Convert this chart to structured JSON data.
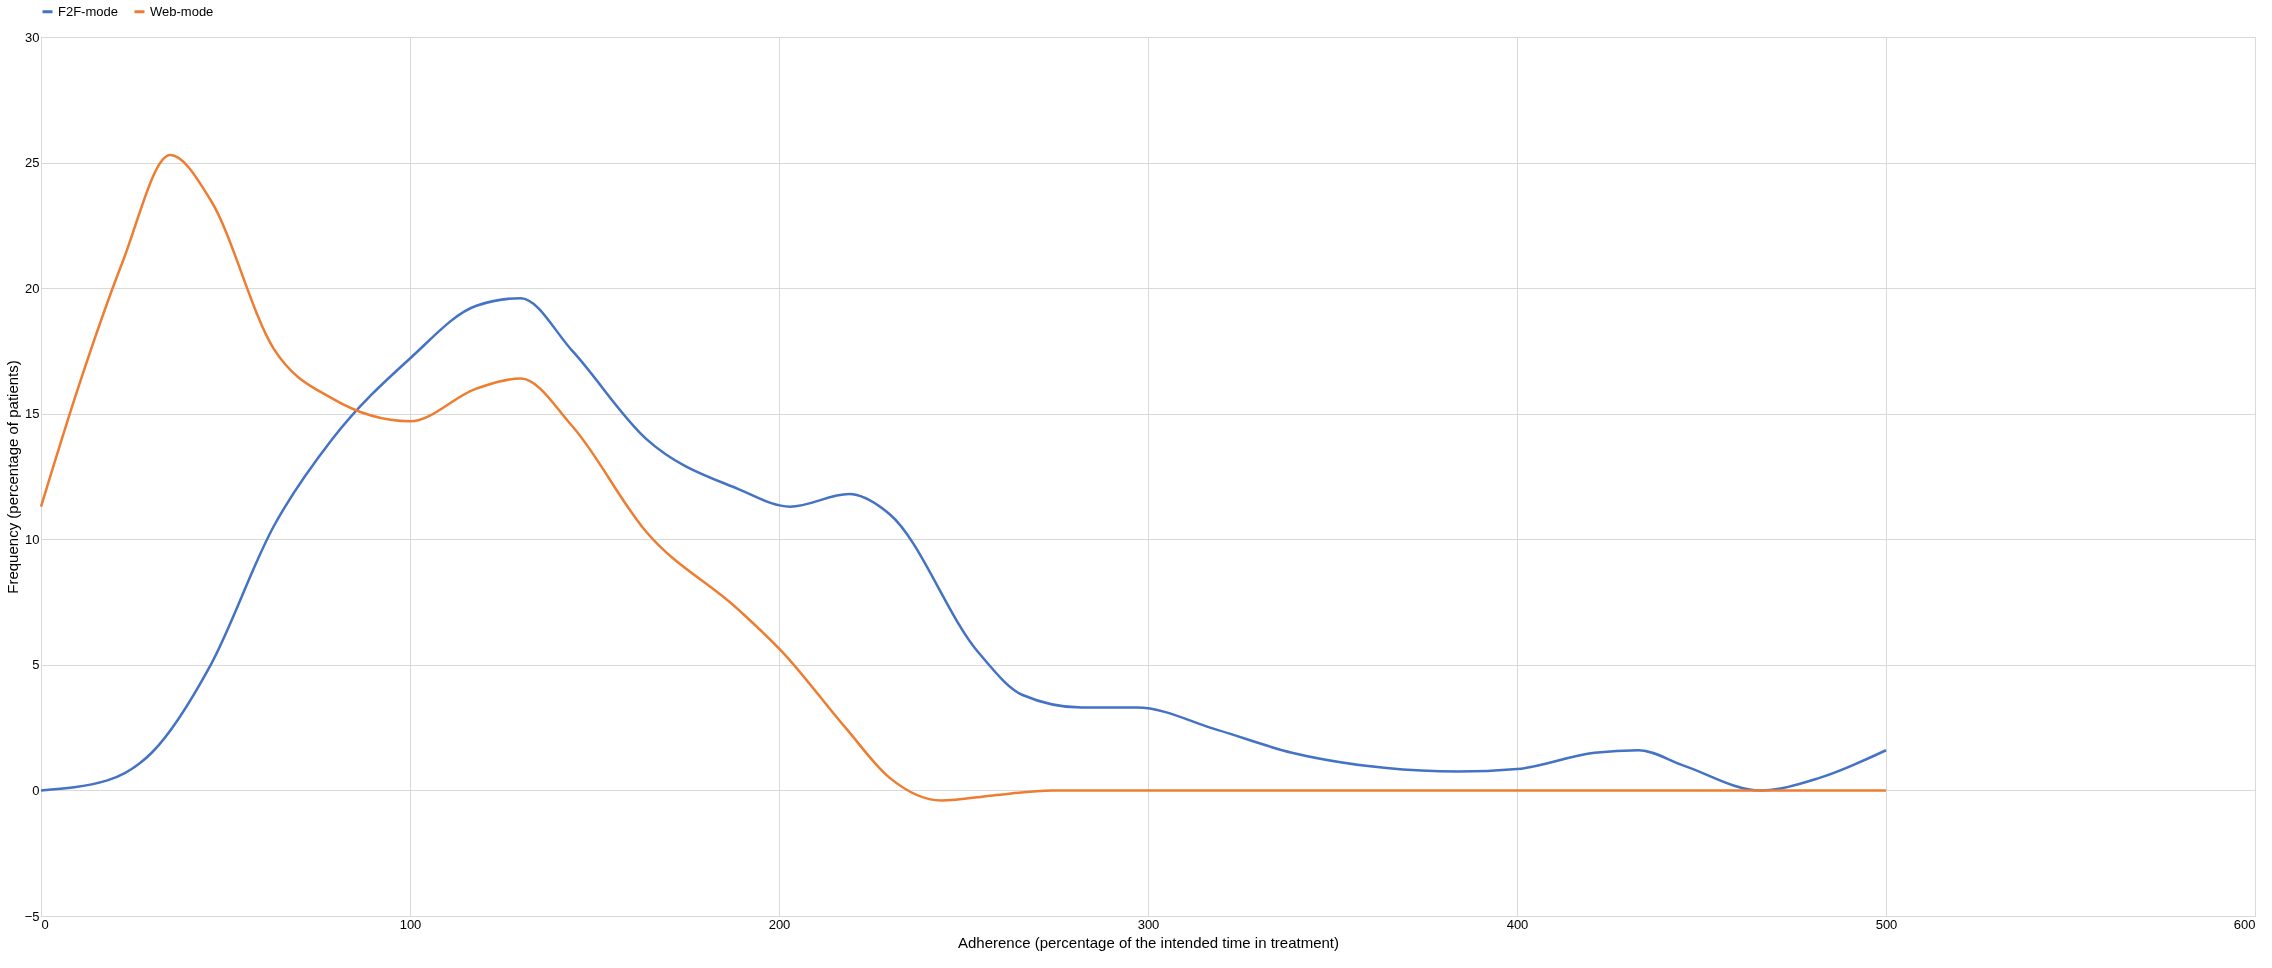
{
  "chart_data": {
    "type": "line",
    "xlabel": "Adherence (percentage of the intended time in treatment)",
    "ylabel": "Frequency (percentage of patients)",
    "xlim": [
      0,
      600
    ],
    "xticks": [
      0,
      100,
      200,
      300,
      400,
      500,
      600
    ],
    "ylim": [
      -5,
      30
    ],
    "yticks": [
      -5,
      0,
      5,
      10,
      15,
      20,
      25,
      30
    ],
    "grid": true,
    "legend": "top",
    "marker": "none",
    "line_style": "solid",
    "series": [
      {
        "name": "F2F-mode",
        "color": "#4472c4",
        "x": [
          0,
          18,
          30,
          46,
          63,
          79,
          100,
          118,
          130,
          144,
          164,
          189,
          203,
          219,
          230,
          254,
          266,
          282,
          297,
          319,
          339,
          364,
          384,
          400,
          421,
          433,
          445,
          466,
          482,
          500
        ],
        "values": [
          0,
          0.4,
          1.5,
          5,
          10.5,
          14,
          17.2,
          19.3,
          19.6,
          17.5,
          14,
          12,
          11.3,
          11.8,
          11,
          5.5,
          3.8,
          3.3,
          3.3,
          2.4,
          1.5,
          0.9,
          0.75,
          0.85,
          1.5,
          1.6,
          1,
          0,
          0.5,
          1.6
        ]
      },
      {
        "name": "Web-mode",
        "color": "#ed7d31",
        "x": [
          0,
          10,
          22,
          35,
          46,
          63,
          79,
          100,
          118,
          130,
          144,
          164,
          189,
          201,
          218,
          230,
          244,
          258,
          274,
          350,
          400,
          500
        ],
        "values": [
          11.3,
          16,
          21,
          25.3,
          23.5,
          17.6,
          15.6,
          14.7,
          16,
          16.4,
          14.5,
          10.3,
          7.2,
          5.5,
          2.5,
          0.5,
          -0.4,
          -0.2,
          0,
          0,
          0,
          0
        ]
      }
    ]
  }
}
